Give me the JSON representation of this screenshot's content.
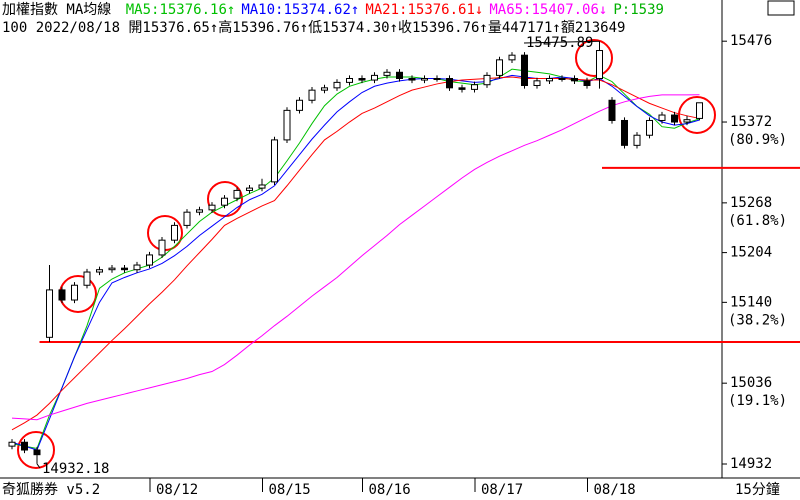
{
  "chart_data": {
    "type": "candlestick",
    "title": "加權指數 MA均線",
    "info_line": "100 2022/08/18 開15376.65↑高15396.76↑低15374.30↑收15396.76↑量447171↑額213649",
    "extra_label": {
      "text": "P:1539",
      "color": "#00b000"
    },
    "footer_left": "奇狐勝券 v5.2",
    "period": "15分鐘",
    "categories": [
      null,
      null,
      null,
      null,
      null,
      null,
      null,
      null,
      null,
      null,
      null,
      null,
      "08/12",
      null,
      null,
      null,
      null,
      null,
      null,
      null,
      null,
      "08/15",
      null,
      null,
      null,
      null,
      null,
      null,
      null,
      "08/16",
      null,
      null,
      null,
      null,
      null,
      null,
      null,
      null,
      "08/17",
      null,
      null,
      null,
      null,
      null,
      null,
      null,
      null,
      "08/18",
      null,
      null,
      null,
      null,
      null,
      null,
      null,
      null
    ],
    "open": [
      14955,
      14960,
      14950,
      15095,
      15156,
      15143,
      15162,
      15179,
      15182,
      15184,
      15182,
      15188,
      15201,
      15220,
      15239,
      15256,
      15259,
      15265,
      15274,
      15284,
      15287,
      15295,
      15349,
      15387,
      15400,
      15413,
      15416,
      15423,
      15428,
      15426,
      15432,
      15436,
      15428,
      15426,
      15428,
      15428,
      15416,
      15414,
      15420,
      15432,
      15452,
      15458,
      15419,
      15425,
      15428,
      15428,
      15425,
      15428,
      15400,
      15374,
      15342,
      15355,
      15374,
      15381,
      15372,
      15376.65
    ],
    "high": [
      14964,
      14964,
      14954,
      15188,
      15160,
      15166,
      15183,
      15186,
      15188,
      15188,
      15192,
      15205,
      15224,
      15243,
      15260,
      15263,
      15269,
      15278,
      15288,
      15291,
      15299,
      15353,
      15391,
      15404,
      15417,
      15420,
      15427,
      15432,
      15432,
      15436,
      15440,
      15440,
      15432,
      15432,
      15432,
      15432,
      15420,
      15424,
      15436,
      15456,
      15462,
      15462,
      15429,
      15432,
      15432,
      15432,
      15429,
      15475.89,
      15404,
      15378,
      15359,
      15378,
      15385,
      15385,
      15380,
      15396.76
    ],
    "low": [
      14951,
      14946,
      14932.18,
      15089,
      15139,
      15139,
      15158,
      15175,
      15178,
      15178,
      15178,
      15184,
      15197,
      15216,
      15235,
      15252,
      15255,
      15261,
      15270,
      15280,
      15283,
      15291,
      15345,
      15383,
      15396,
      15409,
      15412,
      15419,
      15422,
      15422,
      15428,
      15424,
      15422,
      15422,
      15424,
      15412,
      15410,
      15410,
      15416,
      15428,
      15448,
      15415,
      15415,
      15421,
      15424,
      15421,
      15415,
      15415,
      15370,
      15338,
      15338,
      15351,
      15370,
      15368,
      15368,
      15374.3
    ],
    "close": [
      14960,
      14950,
      14944,
      15156,
      15143,
      15162,
      15179,
      15182,
      15184,
      15182,
      15188,
      15201,
      15220,
      15239,
      15256,
      15259,
      15265,
      15274,
      15284,
      15287,
      15291,
      15349,
      15387,
      15400,
      15413,
      15416,
      15423,
      15428,
      15426,
      15432,
      15436,
      15428,
      15426,
      15428,
      15428,
      15416,
      15414,
      15420,
      15432,
      15452,
      15458,
      15419,
      15425,
      15428,
      15428,
      15425,
      15419,
      15464,
      15374,
      15342,
      15355,
      15374,
      15381,
      15372,
      15375,
      15396.76
    ],
    "series": [
      {
        "name": "MA5",
        "label": "MA5:15376.16↑",
        "color": "#00c000",
        "values": [
          14958,
          14955,
          14952,
          14995,
          15030,
          15070,
          15110,
          15158,
          15170,
          15178,
          15183,
          15188,
          15198,
          15212,
          15228,
          15244,
          15256,
          15264,
          15272,
          15280,
          15287,
          15300,
          15322,
          15345,
          15370,
          15393,
          15408,
          15418,
          15423,
          15427,
          15430,
          15430,
          15430,
          15428,
          15428,
          15424,
          15422,
          15420,
          15422,
          15430,
          15440,
          15438,
          15436,
          15434,
          15430,
          15425,
          15424,
          15432,
          15424,
          15408,
          15392,
          15382,
          15366,
          15364,
          15371,
          15376.16
        ]
      },
      {
        "name": "MA10",
        "label": "MA10:15374.62↑",
        "color": "#0000ff",
        "values": [
          14960,
          14955,
          14950,
          14990,
          15030,
          15070,
          15105,
          15140,
          15165,
          15172,
          15178,
          15183,
          15190,
          15200,
          15212,
          15226,
          15238,
          15250,
          15262,
          15272,
          15279,
          15290,
          15310,
          15330,
          15350,
          15368,
          15385,
          15398,
          15410,
          15418,
          15422,
          15425,
          15427,
          15428,
          15428,
          15427,
          15425,
          15423,
          15424,
          15428,
          15432,
          15430,
          15428,
          15428,
          15430,
          15428,
          15424,
          15428,
          15418,
          15405,
          15392,
          15380,
          15372,
          15368,
          15370,
          15374.62
        ]
      },
      {
        "name": "MA21",
        "label": "MA21:15376.61↓",
        "color": "#ff0000",
        "values": [
          14976,
          14985,
          14995,
          15010,
          15027,
          15043,
          15059,
          15075,
          15091,
          15106,
          15122,
          15138,
          15153,
          15169,
          15187,
          15204,
          15221,
          15239,
          15248,
          15256,
          15264,
          15271,
          15290,
          15310,
          15330,
          15349,
          15360,
          15372,
          15383,
          15390,
          15398,
          15406,
          15413,
          15417,
          15421,
          15424,
          15426,
          15427,
          15428,
          15429,
          15430,
          15428,
          15428,
          15428,
          15428,
          15427,
          15426,
          15426,
          15420,
          15412,
          15404,
          15396,
          15390,
          15384,
          15380,
          15376.61
        ]
      },
      {
        "name": "MA65",
        "label": "MA65:15407.06↓",
        "color": "#ff00ff",
        "values": [
          14991,
          14990,
          14989,
          14995,
          15000,
          15005,
          15010,
          15014,
          15018,
          15022,
          15026,
          15030,
          15034,
          15038,
          15042,
          15047,
          15051,
          15060,
          15072,
          15085,
          15097,
          15110,
          15122,
          15135,
          15148,
          15160,
          15172,
          15186,
          15200,
          15213,
          15226,
          15240,
          15252,
          15264,
          15276,
          15288,
          15300,
          15311,
          15320,
          15328,
          15335,
          15342,
          15348,
          15355,
          15362,
          15370,
          15378,
          15386,
          15393,
          15398,
          15402,
          15405,
          15407,
          15407,
          15407,
          15407.06
        ]
      }
    ],
    "ylim": [
      14914,
      15529
    ],
    "yticks": [
      14932,
      15036,
      15140,
      15204,
      15268,
      15372,
      15476
    ],
    "fib_labels": [
      {
        "value": 15036,
        "label": "(19.1%)"
      },
      {
        "value": 15140,
        "label": "(38.2%)"
      },
      {
        "value": 15268,
        "label": "(61.8%)"
      },
      {
        "value": 15372,
        "label": "(80.9%)"
      }
    ],
    "reference_lines": [
      {
        "value": 15089,
        "color": "#ff0000",
        "start": 3
      },
      {
        "value": 15313,
        "color": "#ff0000",
        "start": 48
      }
    ],
    "annotations": [
      "15475.89",
      "14932.18"
    ]
  }
}
